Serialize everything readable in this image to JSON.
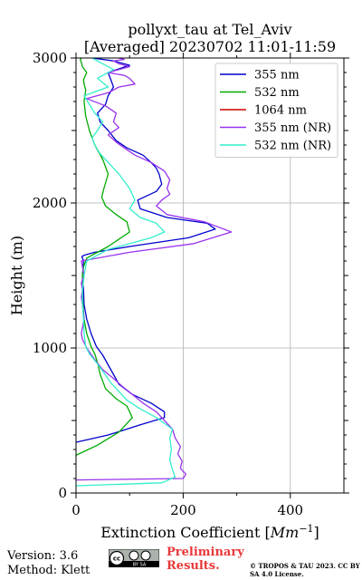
{
  "title": "pollyxt_tau at Tel_Aviv",
  "subtitle": "[Averaged] 20230702 11:01-11:59",
  "footer": {
    "version": "Version: 3.6",
    "method": "Method: Klett",
    "preliminary": "Preliminary Results.",
    "copyright": "© TROPOS & TAU 2023. CC BY SA 4.0 License.",
    "license_logo_text": "cc BY SA"
  },
  "chart_data": {
    "type": "line",
    "title": "pollyxt_tau at Tel_Aviv\n[Averaged] 20230702 11:01-11:59",
    "xlabel": "Extinction Coefficient [Mm^-1]",
    "ylabel": "Height (m)",
    "xlim": [
      0,
      500
    ],
    "ylim": [
      0,
      3000
    ],
    "xticks": [
      0,
      200,
      400
    ],
    "yticks": [
      0,
      1000,
      2000,
      3000
    ],
    "grid": true,
    "legend_position": "top-right",
    "series": [
      {
        "name": "355 nm",
        "color": "#0000cc",
        "x": [
          0,
          0,
          60,
          120,
          165,
          165,
          140,
          105,
          80,
          65,
          50,
          38,
          28,
          20,
          15,
          14,
          12,
          13,
          14,
          12,
          11,
          15,
          35,
          100,
          210,
          260,
          245,
          170,
          120,
          115,
          150,
          160,
          155,
          150,
          140,
          125,
          95,
          75,
          60,
          45,
          40,
          55,
          60,
          70,
          65,
          60,
          100,
          70,
          30
        ],
        "y": [
          350,
          350,
          400,
          470,
          520,
          560,
          620,
          680,
          750,
          850,
          950,
          1010,
          1100,
          1200,
          1300,
          1400,
          1500,
          1550,
          1600,
          1620,
          1630,
          1640,
          1660,
          1700,
          1760,
          1820,
          1860,
          1900,
          1960,
          2020,
          2080,
          2130,
          2200,
          2240,
          2280,
          2330,
          2380,
          2430,
          2500,
          2560,
          2620,
          2680,
          2740,
          2800,
          2850,
          2900,
          2950,
          2980,
          3000
        ]
      },
      {
        "name": "532 nm",
        "color": "#00aa00",
        "x": [
          0,
          40,
          80,
          105,
          95,
          75,
          55,
          45,
          40,
          35,
          28,
          20,
          15,
          13,
          12,
          12,
          14,
          20,
          60,
          100,
          95,
          75,
          55,
          48,
          52,
          60,
          50,
          35,
          25,
          18,
          15,
          18,
          15,
          14,
          20,
          12,
          10,
          8,
          10
        ],
        "y": [
          260,
          330,
          420,
          520,
          600,
          650,
          720,
          820,
          900,
          960,
          1010,
          1100,
          1200,
          1300,
          1400,
          1500,
          1560,
          1620,
          1700,
          1800,
          1870,
          1920,
          1980,
          2040,
          2100,
          2200,
          2300,
          2400,
          2500,
          2600,
          2700,
          2780,
          2820,
          2850,
          2900,
          2940,
          2970,
          2990,
          3000
        ]
      },
      {
        "name": "1064 nm",
        "color": "#cc0000",
        "x": [],
        "y": []
      },
      {
        "name": "355 nm (NR)",
        "color": "#9933ee",
        "x": [
          0,
          200,
          205,
          195,
          198,
          190,
          195,
          185,
          180,
          165,
          150,
          125,
          105,
          85,
          70,
          50,
          35,
          20,
          12,
          10,
          15,
          12,
          10,
          12,
          10,
          15,
          12,
          10,
          100,
          220,
          290,
          240,
          170,
          150,
          160,
          175,
          170,
          175,
          165,
          140,
          110,
          90,
          75,
          60,
          80,
          70,
          75,
          55,
          20,
          60,
          80,
          110,
          100,
          90,
          60,
          80,
          100,
          80,
          70,
          90,
          80
        ],
        "y": [
          90,
          100,
          130,
          170,
          220,
          270,
          320,
          380,
          440,
          500,
          560,
          620,
          680,
          740,
          790,
          850,
          920,
          1000,
          1060,
          1100,
          1200,
          1300,
          1350,
          1400,
          1450,
          1500,
          1560,
          1600,
          1660,
          1720,
          1800,
          1870,
          1920,
          1980,
          2020,
          2060,
          2100,
          2160,
          2220,
          2280,
          2330,
          2380,
          2420,
          2470,
          2520,
          2560,
          2620,
          2670,
          2720,
          2760,
          2800,
          2820,
          2860,
          2880,
          2900,
          2920,
          2940,
          2960,
          2980,
          2990,
          3000
        ]
      },
      {
        "name": "532 nm (NR)",
        "color": "#33eecc",
        "x": [
          0,
          160,
          185,
          180,
          175,
          178,
          175,
          180,
          150,
          120,
          95,
          80,
          65,
          50,
          38,
          25,
          18,
          15,
          14,
          12,
          12,
          15,
          20,
          60,
          140,
          165,
          150,
          120,
          100,
          110,
          100,
          80,
          60,
          45,
          35,
          30,
          40,
          50,
          35,
          25,
          15,
          60,
          40,
          70,
          50,
          30
        ],
        "y": [
          50,
          70,
          110,
          160,
          230,
          300,
          380,
          440,
          520,
          580,
          640,
          700,
          760,
          840,
          900,
          960,
          1010,
          1100,
          1200,
          1300,
          1400,
          1500,
          1600,
          1680,
          1760,
          1800,
          1860,
          1900,
          1960,
          2020,
          2100,
          2200,
          2280,
          2340,
          2400,
          2450,
          2500,
          2560,
          2620,
          2680,
          2740,
          2800,
          2860,
          2920,
          2960,
          3000
        ]
      }
    ]
  }
}
